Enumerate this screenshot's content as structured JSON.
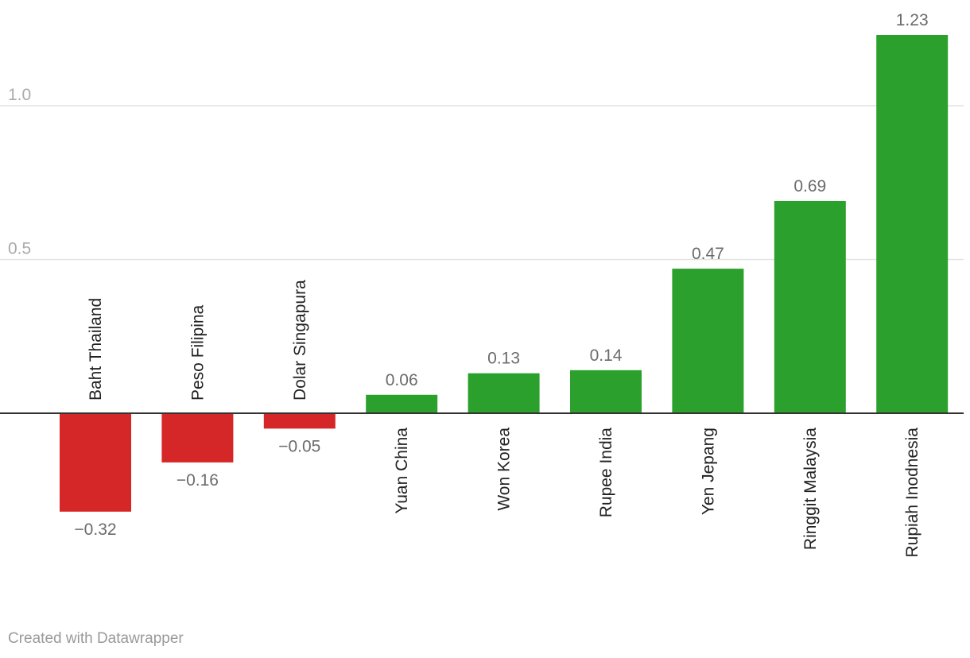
{
  "chart_data": {
    "type": "bar",
    "categories": [
      "Baht Thailand",
      "Peso Filipina",
      "Dolar Singapura",
      "Yuan China",
      "Won Korea",
      "Rupee India",
      "Yen Jepang",
      "Ringgit Malaysia",
      "Rupiah Inodnesia"
    ],
    "values": [
      -0.32,
      -0.16,
      -0.05,
      0.06,
      0.13,
      0.14,
      0.47,
      0.69,
      1.23
    ],
    "value_labels": [
      "−0.32",
      "−0.16",
      "−0.05",
      "0.06",
      "0.13",
      "0.14",
      "0.47",
      "0.69",
      "1.23"
    ],
    "y_ticks": [
      0.5,
      1.0
    ],
    "y_tick_labels": [
      "0.5",
      "1.0"
    ],
    "ylim": [
      -0.32,
      1.23
    ],
    "grid": true,
    "legend": "none",
    "colors": {
      "positive": "#2ca02c",
      "negative": "#d62728",
      "grid": "#e2e2e2",
      "zero_line": "#333333"
    },
    "title": "",
    "xlabel": "",
    "ylabel": ""
  },
  "footer": {
    "credit": "Created with Datawrapper"
  }
}
